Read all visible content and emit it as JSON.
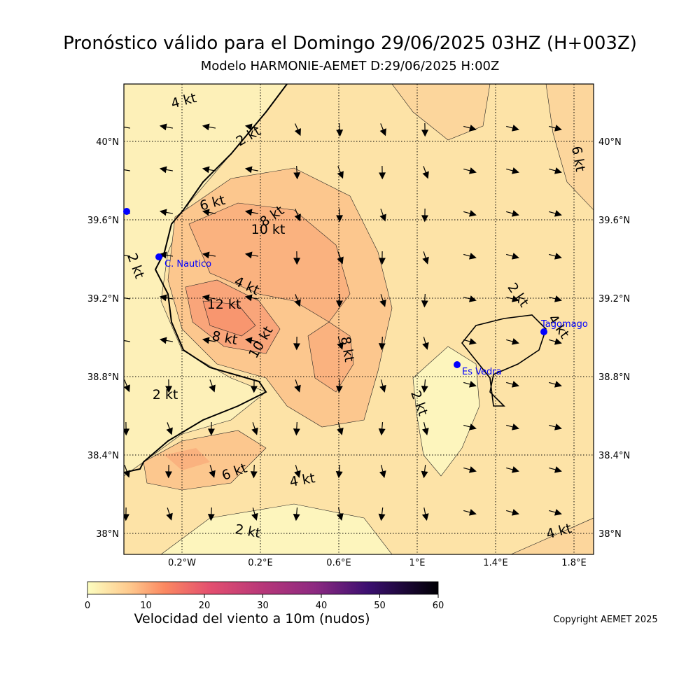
{
  "header": {
    "title": "Pronóstico válido para el Domingo 29/06/2025 03HZ (H+003Z)",
    "subtitle": "Modelo HARMONIE-AEMET D:29/06/2025 H:00Z"
  },
  "map": {
    "lat_labels": [
      "40°N",
      "39.6°N",
      "39.2°N",
      "38.8°N",
      "38.4°N",
      "38°N"
    ],
    "lon_labels": [
      "0.2°W",
      "0.2°E",
      "0.6°E",
      "1°E",
      "1.4°E",
      "1.8°E"
    ],
    "contour_labels": [
      "4 kt",
      "2 kt",
      "6 kt",
      "8 kt",
      "10 kt",
      "2 kt",
      "4 kt",
      "12 kt",
      "8 kt",
      "10 kt",
      "8 kt",
      "2 kt",
      "4 kt",
      "6 kt",
      "2 kt",
      "2 kt",
      "6 kt",
      "4 kt",
      "2 kt",
      "4 kt"
    ],
    "stations": [
      "C. Nautico",
      "Tagomago",
      "Es Vedra"
    ]
  },
  "colorbar": {
    "ticks": [
      0,
      10,
      20,
      30,
      40,
      50,
      60
    ],
    "label": "Velocidad del viento a 10m (nudos)"
  },
  "footer": {
    "copyright": "Copyright AEMET 2025"
  }
}
